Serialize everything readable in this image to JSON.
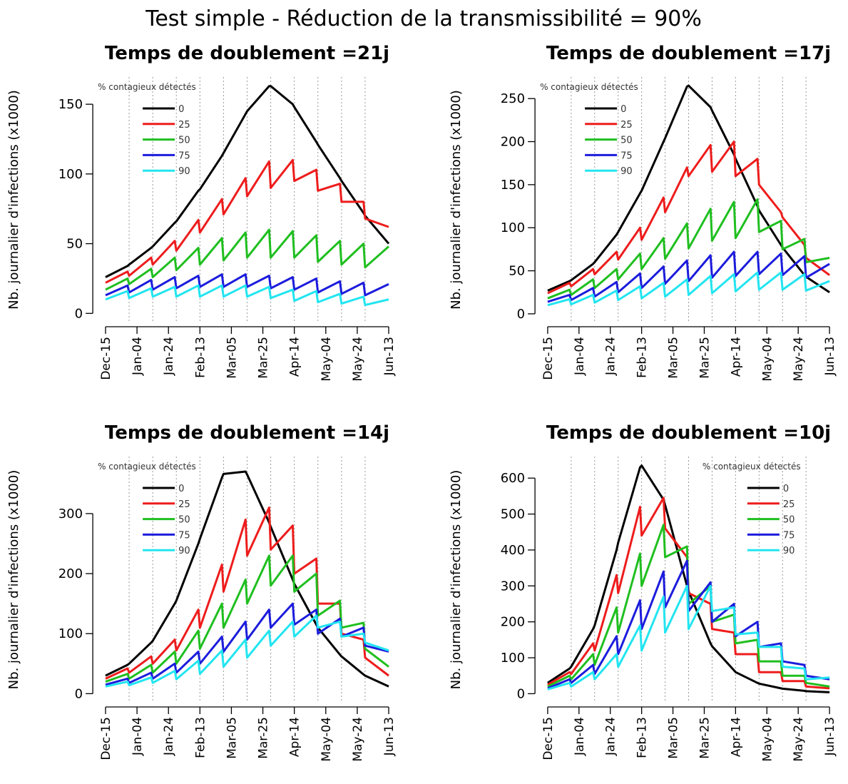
{
  "title": "Test simple - Réduction de la transmissibilité = 90%",
  "chart_data": [
    {
      "type": "line",
      "title": "Temps de doublement =21j",
      "ylabel": "Nb. journalier d'infections (x1000)",
      "legend_title": "% contagieux détectés",
      "legend": "top-left",
      "x": [
        0,
        14,
        15,
        29,
        30,
        44,
        45,
        59,
        60,
        74,
        75,
        89,
        90,
        104,
        105,
        119,
        120,
        134,
        135,
        149,
        150,
        164,
        165,
        180
      ],
      "xlim": [
        -7.2,
        187.2
      ],
      "xticks": [
        {
          "value": 0,
          "label": "Dec-15"
        },
        {
          "value": 20,
          "label": "Jan-04"
        },
        {
          "value": 40,
          "label": "Jan-24"
        },
        {
          "value": 60,
          "label": "Feb-13"
        },
        {
          "value": 80,
          "label": "Mar-05"
        },
        {
          "value": 100,
          "label": "Mar-25"
        },
        {
          "value": 120,
          "label": "Apr-14"
        },
        {
          "value": 140,
          "label": "May-04"
        },
        {
          "value": 160,
          "label": "May-24"
        },
        {
          "value": 180,
          "label": "Jun-13"
        }
      ],
      "vlines": [
        15,
        30,
        45,
        60,
        75,
        90,
        105,
        120,
        135,
        150,
        165
      ],
      "ylim": [
        -6.5,
        169.5
      ],
      "yticks": [
        0,
        50,
        100,
        150
      ],
      "series": [
        {
          "name": "0",
          "color": "#000000",
          "values": [
            26,
            34,
            35,
            47,
            48,
            65,
            66,
            88,
            89,
            113,
            115,
            143,
            145,
            163,
            163,
            150,
            148,
            123,
            121,
            97,
            95,
            72,
            70,
            50
          ]
        },
        {
          "name": "25",
          "color": "#ee1c1c",
          "values": [
            22,
            30,
            27,
            40,
            35,
            52,
            45,
            67,
            58,
            82,
            71,
            97,
            84,
            109,
            90,
            110,
            95,
            103,
            88,
            93,
            80,
            80,
            68,
            62
          ]
        },
        {
          "name": "50",
          "color": "#1fbf1f",
          "values": [
            17,
            25,
            21,
            32,
            26,
            40,
            31,
            47,
            35,
            54,
            38,
            58,
            40,
            60,
            40,
            59,
            40,
            56,
            37,
            52,
            35,
            50,
            33,
            48
          ]
        },
        {
          "name": "75",
          "color": "#1c1cdd",
          "values": [
            13,
            20,
            15,
            24,
            17,
            26,
            18,
            27,
            19,
            28,
            19,
            28,
            19,
            27,
            18,
            26,
            17,
            25,
            15,
            23,
            14,
            22,
            13,
            21
          ]
        },
        {
          "name": "90",
          "color": "#22e5f0",
          "values": [
            10,
            16,
            11,
            18,
            12,
            19,
            12,
            20,
            12,
            20,
            12,
            20,
            12,
            19,
            11,
            17,
            9,
            16,
            8,
            14,
            7,
            12,
            6,
            10
          ]
        }
      ]
    },
    {
      "type": "line",
      "title": "Temps de doublement =17j",
      "ylabel": "Nb. journalier d'infections (x1000)",
      "legend_title": "% contagieux détectés",
      "legend": "top-left",
      "x": [
        0,
        14,
        15,
        29,
        30,
        44,
        45,
        59,
        60,
        74,
        75,
        89,
        90,
        104,
        105,
        119,
        120,
        134,
        135,
        149,
        150,
        164,
        165,
        180
      ],
      "xlim": [
        -7.2,
        187.2
      ],
      "xticks": [
        {
          "value": 0,
          "label": "Dec-15"
        },
        {
          "value": 20,
          "label": "Jan-04"
        },
        {
          "value": 40,
          "label": "Jan-24"
        },
        {
          "value": 60,
          "label": "Feb-13"
        },
        {
          "value": 80,
          "label": "Mar-05"
        },
        {
          "value": 100,
          "label": "Mar-25"
        },
        {
          "value": 120,
          "label": "Apr-14"
        },
        {
          "value": 140,
          "label": "May-04"
        },
        {
          "value": 160,
          "label": "May-24"
        },
        {
          "value": 180,
          "label": "Jun-13"
        }
      ],
      "vlines": [
        15,
        30,
        45,
        60,
        75,
        90,
        105,
        120,
        135,
        150,
        165
      ],
      "ylim": [
        -10,
        275
      ],
      "yticks": [
        0,
        50,
        100,
        150,
        200,
        250
      ],
      "series": [
        {
          "name": "0",
          "color": "#000000",
          "values": [
            27,
            38,
            39,
            58,
            60,
            92,
            95,
            140,
            143,
            200,
            204,
            264,
            265,
            240,
            236,
            185,
            180,
            125,
            120,
            80,
            77,
            45,
            43,
            25
          ]
        },
        {
          "name": "25",
          "color": "#ee1c1c",
          "values": [
            24,
            36,
            32,
            52,
            46,
            72,
            63,
            100,
            86,
            135,
            118,
            170,
            160,
            196,
            165,
            200,
            160,
            180,
            150,
            118,
            112,
            80,
            65,
            45
          ]
        },
        {
          "name": "50",
          "color": "#1fbf1f",
          "values": [
            18,
            28,
            22,
            40,
            30,
            52,
            40,
            70,
            52,
            88,
            64,
            105,
            76,
            122,
            85,
            130,
            88,
            133,
            95,
            108,
            75,
            87,
            60,
            65
          ]
        },
        {
          "name": "75",
          "color": "#1c1cdd",
          "values": [
            14,
            22,
            16,
            30,
            20,
            37,
            25,
            47,
            30,
            55,
            35,
            62,
            38,
            68,
            42,
            72,
            44,
            72,
            46,
            70,
            45,
            67,
            42,
            58
          ]
        },
        {
          "name": "90",
          "color": "#22e5f0",
          "values": [
            10,
            17,
            11,
            22,
            13,
            27,
            16,
            32,
            18,
            36,
            20,
            40,
            22,
            44,
            24,
            46,
            26,
            48,
            28,
            48,
            28,
            46,
            27,
            38
          ]
        }
      ]
    },
    {
      "type": "line",
      "title": "Temps de doublement =14j",
      "ylabel": "Nb. journalier d'infections (x1000)",
      "legend_title": "% contagieux détectés",
      "legend": "top-left",
      "x": [
        0,
        14,
        15,
        29,
        30,
        44,
        45,
        59,
        60,
        74,
        75,
        89,
        90,
        104,
        105,
        119,
        120,
        134,
        135,
        149,
        150,
        164,
        165,
        180
      ],
      "xlim": [
        -7.2,
        187.2
      ],
      "xticks": [
        {
          "value": 0,
          "label": "Dec-15"
        },
        {
          "value": 20,
          "label": "Jan-04"
        },
        {
          "value": 40,
          "label": "Jan-24"
        },
        {
          "value": 60,
          "label": "Feb-13"
        },
        {
          "value": 80,
          "label": "Mar-05"
        },
        {
          "value": 100,
          "label": "Mar-25"
        },
        {
          "value": 120,
          "label": "Apr-14"
        },
        {
          "value": 140,
          "label": "May-04"
        },
        {
          "value": 160,
          "label": "May-24"
        },
        {
          "value": 180,
          "label": "Jun-13"
        }
      ],
      "vlines": [
        15,
        30,
        45,
        60,
        75,
        90,
        105,
        120,
        135,
        150,
        165
      ],
      "ylim": [
        -15,
        395
      ],
      "yticks": [
        0,
        100,
        200,
        300
      ],
      "series": [
        {
          "name": "0",
          "color": "#000000",
          "values": [
            30,
            48,
            50,
            85,
            88,
            150,
            155,
            250,
            258,
            360,
            366,
            370,
            365,
            285,
            278,
            190,
            183,
            115,
            110,
            65,
            62,
            32,
            30,
            12
          ]
        },
        {
          "name": "25",
          "color": "#ee1c1c",
          "values": [
            25,
            42,
            35,
            62,
            50,
            90,
            72,
            140,
            110,
            215,
            170,
            290,
            230,
            310,
            240,
            280,
            200,
            225,
            150,
            150,
            100,
            90,
            60,
            30
          ]
        },
        {
          "name": "50",
          "color": "#1fbf1f",
          "values": [
            20,
            33,
            25,
            48,
            35,
            70,
            50,
            105,
            75,
            150,
            110,
            190,
            150,
            230,
            180,
            230,
            170,
            200,
            130,
            155,
            110,
            118,
            75,
            45
          ]
        },
        {
          "name": "75",
          "color": "#1c1cdd",
          "values": [
            15,
            25,
            18,
            35,
            25,
            50,
            35,
            70,
            50,
            95,
            70,
            120,
            90,
            140,
            110,
            150,
            115,
            140,
            100,
            125,
            95,
            110,
            80,
            70
          ]
        },
        {
          "name": "90",
          "color": "#22e5f0",
          "values": [
            12,
            20,
            14,
            27,
            18,
            38,
            24,
            55,
            33,
            72,
            45,
            90,
            60,
            105,
            80,
            120,
            95,
            130,
            110,
            120,
            95,
            100,
            85,
            72
          ]
        }
      ]
    },
    {
      "type": "line",
      "title": "Temps de doublement =10j",
      "ylabel": "Nb. journalier d'infections (x1000)",
      "legend_title": "% contagieux détectés",
      "legend": "top-right",
      "x": [
        0,
        14,
        15,
        29,
        30,
        44,
        45,
        59,
        60,
        74,
        75,
        89,
        90,
        104,
        105,
        119,
        120,
        134,
        135,
        149,
        150,
        164,
        165,
        180
      ],
      "xlim": [
        -7.2,
        187.2
      ],
      "xticks": [
        {
          "value": 0,
          "label": "Dec-15"
        },
        {
          "value": 20,
          "label": "Jan-04"
        },
        {
          "value": 40,
          "label": "Jan-24"
        },
        {
          "value": 60,
          "label": "Feb-13"
        },
        {
          "value": 80,
          "label": "Mar-05"
        },
        {
          "value": 100,
          "label": "Mar-25"
        },
        {
          "value": 120,
          "label": "Apr-14"
        },
        {
          "value": 140,
          "label": "May-04"
        },
        {
          "value": 160,
          "label": "May-24"
        },
        {
          "value": 180,
          "label": "Jun-13"
        }
      ],
      "vlines": [
        15,
        30,
        45,
        60,
        75,
        90,
        105,
        120,
        135,
        150,
        165
      ],
      "ylim": [
        -25,
        660
      ],
      "yticks": [
        0,
        100,
        200,
        300,
        400,
        500,
        600
      ],
      "series": [
        {
          "name": "0",
          "color": "#000000",
          "values": [
            30,
            70,
            75,
            180,
            190,
            400,
            420,
            630,
            635,
            540,
            525,
            300,
            285,
            140,
            132,
            65,
            60,
            30,
            28,
            15,
            14,
            8,
            7,
            4
          ]
        },
        {
          "name": "25",
          "color": "#ee1c1c",
          "values": [
            25,
            60,
            55,
            140,
            120,
            330,
            280,
            520,
            440,
            545,
            460,
            380,
            280,
            250,
            180,
            170,
            110,
            110,
            60,
            60,
            35,
            35,
            20,
            15
          ]
        },
        {
          "name": "50",
          "color": "#1fbf1f",
          "values": [
            20,
            50,
            40,
            110,
            80,
            240,
            170,
            390,
            300,
            470,
            380,
            410,
            250,
            300,
            200,
            220,
            140,
            150,
            90,
            90,
            50,
            50,
            30,
            20
          ]
        },
        {
          "name": "75",
          "color": "#1c1cdd",
          "values": [
            15,
            40,
            30,
            80,
            55,
            160,
            110,
            260,
            180,
            340,
            240,
            370,
            230,
            310,
            200,
            250,
            160,
            200,
            130,
            140,
            90,
            80,
            50,
            40
          ]
        },
        {
          "name": "90",
          "color": "#22e5f0",
          "values": [
            12,
            30,
            20,
            60,
            40,
            110,
            75,
            190,
            120,
            270,
            170,
            300,
            180,
            300,
            230,
            240,
            165,
            170,
            130,
            130,
            75,
            70,
            40,
            45
          ]
        }
      ]
    }
  ]
}
